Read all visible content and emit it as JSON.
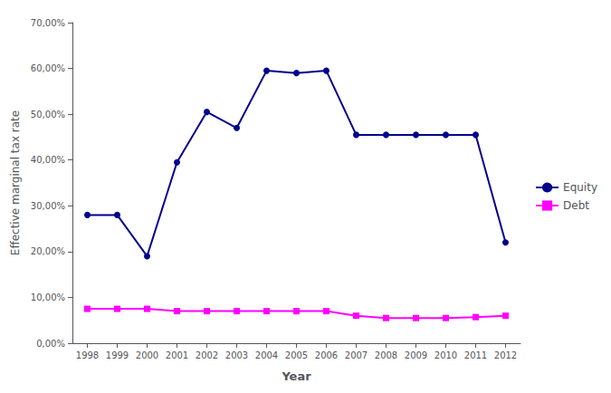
{
  "chart_data": {
    "type": "line",
    "xlabel": "Year",
    "ylabel": "Effective marginal tax rate",
    "x": [
      1998,
      1999,
      2000,
      2001,
      2002,
      2003,
      2004,
      2005,
      2006,
      2007,
      2008,
      2009,
      2010,
      2011,
      2012
    ],
    "xlim": [
      1997.5,
      2012.5
    ],
    "xticks": [
      1998,
      1999,
      2000,
      2001,
      2002,
      2003,
      2004,
      2005,
      2006,
      2007,
      2008,
      2009,
      2010,
      2011,
      2012
    ],
    "ylim": [
      0.0,
      0.7
    ],
    "yticks": [
      {
        "value": 0.0,
        "label": "0,00%"
      },
      {
        "value": 0.1,
        "label": "10,00%"
      },
      {
        "value": 0.2,
        "label": "20,00%"
      },
      {
        "value": 0.3,
        "label": "30,00%"
      },
      {
        "value": 0.4,
        "label": "40,00%"
      },
      {
        "value": 0.5,
        "label": "50,00%"
      },
      {
        "value": 0.6,
        "label": "60,00%"
      },
      {
        "value": 0.7,
        "label": "70,00%"
      }
    ],
    "grid": false,
    "legend": "right",
    "series": [
      {
        "name": "Equity",
        "color": "#00008B",
        "marker": "circle",
        "values": [
          0.28,
          0.28,
          0.19,
          0.395,
          0.505,
          0.47,
          0.595,
          0.59,
          0.595,
          0.455,
          0.455,
          0.455,
          0.455,
          0.455,
          0.22
        ]
      },
      {
        "name": "Debt",
        "color": "#FF00FF",
        "marker": "square",
        "values": [
          0.075,
          0.075,
          0.075,
          0.07,
          0.07,
          0.07,
          0.07,
          0.07,
          0.07,
          0.06,
          0.055,
          0.055,
          0.055,
          0.057,
          0.06
        ]
      }
    ]
  }
}
